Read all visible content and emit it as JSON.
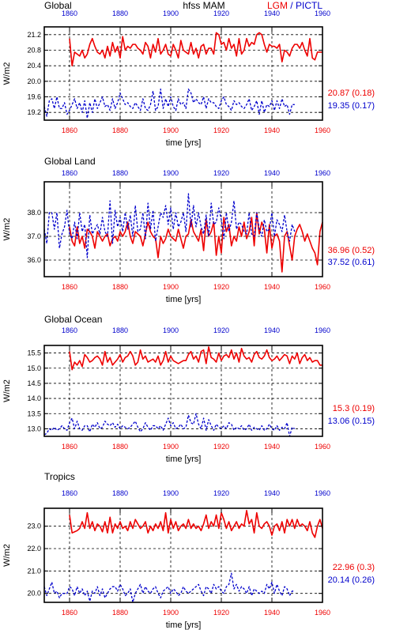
{
  "header": {
    "region": "Global",
    "center_title": "hfss MAM",
    "legend_lgm": "LGM",
    "legend_sep": " / ",
    "legend_pictl": "PICTL"
  },
  "colors": {
    "lgm": "#ee0000",
    "pictl": "#0000cc",
    "axis": "#000000"
  },
  "chart_data": [
    {
      "type": "line",
      "title": "Global",
      "xlabel": "time [yrs]",
      "ylabel": "W/m2",
      "xlim": [
        1850,
        1960
      ],
      "ylim": [
        19.0,
        21.4
      ],
      "x_ticks": [
        1860,
        1880,
        1900,
        1920,
        1940,
        1960
      ],
      "x_tick_labels": [
        "1860",
        "1880",
        "1900",
        "1920",
        "1940",
        "1960"
      ],
      "y_ticks": [
        19.2,
        19.6,
        20.0,
        20.4,
        20.8,
        21.2
      ],
      "y_tick_labels": [
        "19.2",
        "19.6",
        "20.0",
        "20.4",
        "20.8",
        "21.2"
      ],
      "grid": true,
      "lgm_stat": "20.87 (0.18)",
      "pictl_stat": "19.35 (0.17)",
      "series": [
        {
          "name": "LGM",
          "style": "solid",
          "x_start": 1860,
          "values": [
            21.1,
            20.4,
            20.75,
            20.7,
            20.65,
            20.8,
            20.6,
            20.7,
            20.95,
            21.1,
            20.9,
            20.75,
            20.7,
            20.8,
            20.6,
            20.9,
            20.65,
            21.0,
            20.75,
            20.9,
            20.6,
            21.15,
            20.8,
            20.9,
            20.85,
            20.95,
            20.95,
            20.85,
            20.8,
            20.7,
            21.0,
            20.9,
            20.6,
            20.95,
            20.75,
            21.1,
            20.7,
            20.8,
            20.95,
            20.7,
            20.65,
            20.95,
            20.8,
            20.6,
            21.05,
            20.8,
            20.75,
            20.7,
            21.0,
            20.7,
            20.85,
            20.6,
            20.9,
            20.95,
            20.7,
            20.85,
            20.85,
            20.7,
            21.25,
            21.2,
            20.95,
            21.0,
            20.8,
            21.1,
            20.85,
            20.95,
            20.65,
            21.1,
            20.7,
            20.8,
            21.1,
            20.9,
            21.0,
            20.95,
            21.2,
            21.25,
            21.2,
            20.95,
            20.75,
            20.95,
            20.9,
            20.9,
            20.85,
            20.95,
            20.5,
            20.8,
            20.75,
            20.65,
            20.85,
            20.95,
            20.95,
            20.85,
            21.0,
            20.8,
            20.65,
            21.1,
            20.6,
            20.55,
            20.75,
            20.75,
            20.75
          ]
        },
        {
          "name": "PICTL",
          "style": "dashed",
          "x_start": 1850,
          "values": [
            19.35,
            19.1,
            19.5,
            19.55,
            19.3,
            19.6,
            19.3,
            19.3,
            19.45,
            19.15,
            19.25,
            19.4,
            19.55,
            19.3,
            19.45,
            19.2,
            19.5,
            19.05,
            19.45,
            19.2,
            19.55,
            19.3,
            19.45,
            19.6,
            19.35,
            19.4,
            19.25,
            19.55,
            19.3,
            19.45,
            19.7,
            19.55,
            19.4,
            19.45,
            19.35,
            19.3,
            19.45,
            19.35,
            19.25,
            19.55,
            19.3,
            19.25,
            19.4,
            19.75,
            19.25,
            19.35,
            19.8,
            19.3,
            19.55,
            19.35,
            19.6,
            19.35,
            19.25,
            19.55,
            19.4,
            19.45,
            19.3,
            19.8,
            19.7,
            19.45,
            19.55,
            19.45,
            19.4,
            19.6,
            19.3,
            19.55,
            19.45,
            19.45,
            19.35,
            19.3,
            19.5,
            19.6,
            19.4,
            19.35,
            19.25,
            19.5,
            19.4,
            19.45,
            19.35,
            19.3,
            19.4,
            19.55,
            19.25,
            19.35,
            19.5,
            19.15,
            19.5,
            19.2,
            19.4,
            19.35,
            19.5,
            19.25,
            19.5,
            19.3,
            19.55,
            19.35,
            19.4,
            19.15,
            19.4,
            19.4
          ]
        }
      ]
    },
    {
      "type": "line",
      "title": "Global Land",
      "xlabel": "time [yrs]",
      "ylabel": "W/m2",
      "xlim": [
        1850,
        1960
      ],
      "ylim": [
        35.3,
        39.3
      ],
      "x_ticks": [
        1860,
        1880,
        1900,
        1920,
        1940,
        1960
      ],
      "x_tick_labels": [
        "1860",
        "1880",
        "1900",
        "1920",
        "1940",
        "1960"
      ],
      "y_ticks": [
        36.0,
        37.0,
        38.0
      ],
      "y_tick_labels": [
        "36.0",
        "37.0",
        "38.0"
      ],
      "grid": true,
      "lgm_stat": "36.96 (0.52)",
      "pictl_stat": "37.52 (0.61)",
      "series": [
        {
          "name": "LGM",
          "style": "solid",
          "x_start": 1860,
          "values": [
            37.4,
            36.8,
            36.6,
            37.4,
            36.7,
            37.0,
            36.5,
            37.3,
            37.2,
            37.0,
            36.5,
            37.2,
            37.0,
            36.8,
            37.0,
            37.1,
            36.6,
            36.9,
            37.0,
            36.8,
            37.2,
            37.0,
            37.2,
            37.6,
            37.0,
            36.7,
            37.2,
            37.1,
            37.0,
            36.6,
            37.1,
            37.6,
            37.2,
            37.0,
            36.9,
            36.1,
            37.0,
            36.7,
            36.9,
            37.3,
            37.0,
            36.9,
            36.8,
            37.3,
            36.9,
            36.5,
            37.0,
            37.1,
            37.7,
            37.2,
            37.0,
            36.8,
            37.3,
            36.4,
            37.7,
            37.0,
            37.2,
            37.6,
            36.2,
            37.0,
            36.3,
            37.8,
            37.2,
            37.5,
            36.6,
            37.0,
            36.8,
            37.4,
            37.0,
            37.6,
            36.9,
            37.2,
            37.8,
            36.6,
            38.0,
            37.1,
            37.6,
            37.3,
            36.3,
            37.5,
            36.5,
            37.0,
            37.1,
            36.8,
            35.5,
            37.0,
            37.2,
            36.6,
            36.0,
            37.0,
            37.3,
            37.5,
            37.2,
            36.8,
            37.1,
            36.8,
            36.5,
            36.3,
            35.8,
            37.2,
            37.6
          ]
        },
        {
          "name": "PICTL",
          "style": "dashed",
          "x_start": 1850,
          "values": [
            37.3,
            36.7,
            38.0,
            38.0,
            37.3,
            38.0,
            36.5,
            37.1,
            37.4,
            38.1,
            37.1,
            36.9,
            37.6,
            36.9,
            38.0,
            37.2,
            37.5,
            36.1,
            37.9,
            37.1,
            37.3,
            37.5,
            37.1,
            37.8,
            37.2,
            37.0,
            38.5,
            36.7,
            38.1,
            37.4,
            37.8,
            37.2,
            38.0,
            37.3,
            37.9,
            37.0,
            38.3,
            37.2,
            37.3,
            38.0,
            36.9,
            38.4,
            37.3,
            38.1,
            36.8,
            37.4,
            38.0,
            37.8,
            38.3,
            37.5,
            38.2,
            37.3,
            38.0,
            37.4,
            37.6,
            38.0,
            37.2,
            38.8,
            37.4,
            38.3,
            37.4,
            38.0,
            37.4,
            37.1,
            37.9,
            37.0,
            38.4,
            37.5,
            37.6,
            38.2,
            37.7,
            36.9,
            38.0,
            37.2,
            37.6,
            38.5,
            37.3,
            37.6,
            37.5,
            37.2,
            37.1,
            38.0,
            37.1,
            37.0,
            38.0,
            37.3,
            37.0,
            37.7,
            37.2,
            37.3,
            38.0,
            37.0,
            37.7,
            37.5,
            37.2,
            37.9,
            37.2,
            36.8,
            37.5,
            37.2
          ]
        }
      ]
    },
    {
      "type": "line",
      "title": "Global Ocean",
      "xlabel": "time [yrs]",
      "ylabel": "W/m2",
      "xlim": [
        1850,
        1960
      ],
      "ylim": [
        12.75,
        15.75
      ],
      "x_ticks": [
        1860,
        1880,
        1900,
        1920,
        1940,
        1960
      ],
      "x_tick_labels": [
        "1860",
        "1880",
        "1900",
        "1920",
        "1940",
        "1960"
      ],
      "y_ticks": [
        13.0,
        13.5,
        14.0,
        14.5,
        15.0,
        15.5
      ],
      "y_tick_labels": [
        "13.0",
        "13.5",
        "14.0",
        "14.5",
        "15.0",
        "15.5"
      ],
      "grid": true,
      "lgm_stat": "15.3 (0.19)",
      "pictl_stat": "13.06 (0.15)",
      "series": [
        {
          "name": "LGM",
          "style": "solid",
          "x_start": 1860,
          "values": [
            15.55,
            14.95,
            15.2,
            15.1,
            15.25,
            15.05,
            15.45,
            15.35,
            15.2,
            15.25,
            15.35,
            15.4,
            15.3,
            15.1,
            15.55,
            15.2,
            15.35,
            15.1,
            15.2,
            15.3,
            15.45,
            15.2,
            15.35,
            15.4,
            15.55,
            15.4,
            15.1,
            15.2,
            15.6,
            15.3,
            15.4,
            15.2,
            15.25,
            15.3,
            15.2,
            15.4,
            15.1,
            15.25,
            15.55,
            15.2,
            15.4,
            15.25,
            15.2,
            15.15,
            15.2,
            15.25,
            15.25,
            15.45,
            15.55,
            15.3,
            15.4,
            15.2,
            15.55,
            15.6,
            15.15,
            15.7,
            15.35,
            15.3,
            15.2,
            15.5,
            15.25,
            15.4,
            15.45,
            15.35,
            15.6,
            15.3,
            15.5,
            15.2,
            15.65,
            15.4,
            15.3,
            15.35,
            15.2,
            15.45,
            15.55,
            15.35,
            15.3,
            15.4,
            15.6,
            15.35,
            15.25,
            15.3,
            15.4,
            15.25,
            15.35,
            15.45,
            15.4,
            15.15,
            15.4,
            15.3,
            15.5,
            15.15,
            15.35,
            15.45,
            15.25,
            15.35,
            15.2,
            15.25,
            15.25,
            15.1,
            15.1
          ]
        },
        {
          "name": "PICTL",
          "style": "dashed",
          "x_start": 1850,
          "values": [
            12.8,
            12.85,
            13.0,
            12.95,
            13.05,
            12.95,
            13.0,
            13.1,
            13.0,
            12.95,
            13.2,
            13.35,
            13.0,
            13.25,
            13.0,
            12.95,
            13.1,
            13.1,
            12.9,
            13.15,
            13.05,
            13.2,
            13.0,
            13.05,
            13.25,
            13.15,
            13.1,
            13.2,
            13.05,
            13.15,
            13.0,
            13.1,
            13.05,
            13.0,
            13.05,
            13.15,
            13.25,
            13.05,
            12.9,
            13.0,
            13.2,
            13.05,
            12.95,
            13.1,
            13.1,
            13.0,
            13.1,
            12.95,
            13.15,
            13.35,
            13.1,
            13.2,
            13.0,
            13.05,
            13.15,
            13.0,
            13.05,
            13.45,
            13.2,
            13.15,
            13.5,
            13.15,
            13.0,
            13.35,
            12.95,
            13.3,
            13.1,
            12.95,
            13.15,
            13.05,
            13.0,
            13.1,
            13.0,
            13.2,
            13.15,
            12.95,
            13.05,
            13.0,
            13.1,
            12.95,
            13.0,
            13.15,
            12.95,
            13.05,
            13.0,
            12.95,
            13.1,
            12.95,
            13.0,
            13.15,
            13.0,
            12.95,
            13.1,
            12.95,
            13.05,
            13.0,
            13.2,
            12.75,
            13.05,
            13.0
          ]
        }
      ]
    },
    {
      "type": "line",
      "title": "Tropics",
      "xlabel": "time [yrs]",
      "ylabel": "W/m2",
      "xlim": [
        1850,
        1960
      ],
      "ylim": [
        19.6,
        23.8
      ],
      "x_ticks": [
        1860,
        1880,
        1900,
        1920,
        1940,
        1960
      ],
      "x_tick_labels": [
        "1860",
        "1880",
        "1900",
        "1920",
        "1940",
        "1960"
      ],
      "y_ticks": [
        20.0,
        21.0,
        22.0,
        23.0
      ],
      "y_tick_labels": [
        "20.0",
        "21.0",
        "22.0",
        "23.0"
      ],
      "grid": true,
      "lgm_stat": "22.96 (0.3)",
      "pictl_stat": "20.14 (0.26)",
      "series": [
        {
          "name": "LGM",
          "style": "solid",
          "x_start": 1860,
          "values": [
            23.5,
            22.7,
            22.75,
            22.8,
            22.9,
            23.2,
            22.9,
            23.6,
            22.9,
            23.2,
            22.8,
            23.1,
            23.0,
            22.75,
            23.2,
            22.7,
            23.4,
            22.7,
            23.1,
            22.9,
            23.2,
            22.9,
            23.0,
            22.8,
            23.2,
            22.9,
            23.3,
            23.1,
            22.9,
            23.0,
            23.2,
            22.7,
            23.0,
            22.8,
            23.1,
            22.9,
            23.2,
            22.8,
            23.6,
            22.7,
            23.3,
            22.9,
            23.2,
            22.8,
            23.0,
            23.1,
            22.9,
            23.3,
            22.9,
            23.1,
            22.9,
            23.0,
            22.8,
            23.1,
            23.5,
            22.9,
            23.2,
            23.0,
            23.5,
            22.9,
            23.6,
            23.3,
            22.9,
            23.2,
            22.8,
            23.0,
            23.2,
            22.9,
            23.1,
            23.0,
            23.7,
            23.1,
            23.3,
            22.7,
            23.6,
            23.0,
            22.9,
            23.1,
            23.2,
            23.0,
            22.6,
            23.0,
            23.1,
            22.8,
            23.2,
            22.7,
            23.3,
            23.0,
            23.3,
            22.9,
            23.3,
            23.0,
            23.1,
            23.0,
            22.8,
            23.2,
            22.7,
            22.5,
            23.0,
            23.3,
            22.9
          ]
        },
        {
          "name": "PICTL",
          "style": "dashed",
          "x_start": 1850,
          "values": [
            20.3,
            19.9,
            20.2,
            20.5,
            20.0,
            20.1,
            19.8,
            20.0,
            20.0,
            20.0,
            20.3,
            20.2,
            19.9,
            20.3,
            20.0,
            20.2,
            19.9,
            20.1,
            19.65,
            20.1,
            20.0,
            20.3,
            19.9,
            20.2,
            19.8,
            20.0,
            20.2,
            20.3,
            20.3,
            20.1,
            20.4,
            20.2,
            19.9,
            20.0,
            20.2,
            19.6,
            20.0,
            20.2,
            20.4,
            20.0,
            20.3,
            20.1,
            20.0,
            20.2,
            20.3,
            20.0,
            19.8,
            20.1,
            20.2,
            20.3,
            20.0,
            20.2,
            20.1,
            19.9,
            20.0,
            20.3,
            20.1,
            20.0,
            20.1,
            20.2,
            20.3,
            20.4,
            20.1,
            19.9,
            20.3,
            20.2,
            20.0,
            20.4,
            20.2,
            20.3,
            20.1,
            20.0,
            20.3,
            20.4,
            20.9,
            20.2,
            20.4,
            20.1,
            20.3,
            20.2,
            20.0,
            20.3,
            19.9,
            20.2,
            20.1,
            20.0,
            20.1,
            20.0,
            20.4,
            20.2,
            20.5,
            20.0,
            20.4,
            20.1,
            19.9,
            20.3,
            20.2,
            19.9,
            20.1,
            20.1
          ]
        }
      ]
    }
  ]
}
